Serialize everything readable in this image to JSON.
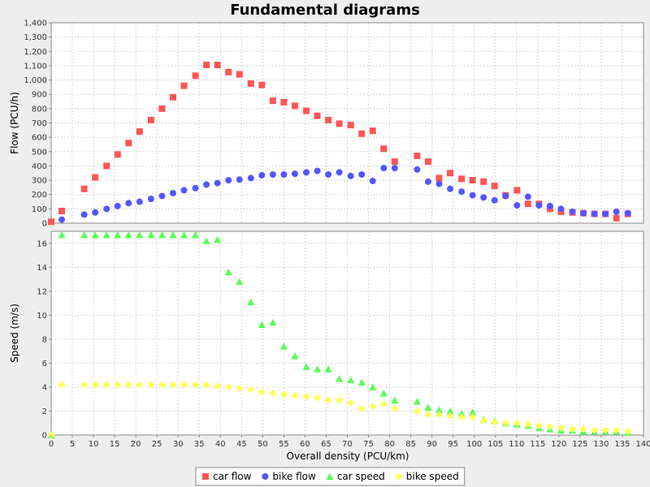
{
  "chart_data": {
    "type": "scatter",
    "title": "Fundamental diagrams",
    "xlabel": "Overall density (PCU/km)",
    "xlim": [
      0,
      140
    ],
    "x_ticks": [
      "0",
      "5",
      "10",
      "15",
      "20",
      "25",
      "30",
      "35",
      "40",
      "45",
      "50",
      "55",
      "60",
      "65",
      "70",
      "75",
      "80",
      "85",
      "90",
      "95",
      "100",
      "105",
      "110",
      "115",
      "120",
      "125",
      "130",
      "135",
      "140"
    ],
    "grid": true,
    "legend_position": "bottom",
    "panels": [
      {
        "ylabel": "Flow (PCU/h)",
        "ylim": [
          0,
          1400
        ],
        "y_ticks": [
          "0",
          "100",
          "200",
          "300",
          "400",
          "500",
          "600",
          "700",
          "800",
          "900",
          "1,000",
          "1,100",
          "1,200",
          "1,300",
          "1,400"
        ],
        "series": [
          {
            "name": "car flow",
            "marker": "square",
            "color": "#ff5555",
            "x": [
              0,
              2.5,
              7.8,
              10.4,
              13.1,
              15.7,
              18.3,
              20.9,
              23.6,
              26.2,
              28.8,
              31.4,
              34.1,
              36.7,
              39.3,
              41.9,
              44.5,
              47.2,
              49.8,
              52.4,
              55,
              57.6,
              60.3,
              62.9,
              65.5,
              68.1,
              70.8,
              73.4,
              76,
              78.6,
              81.2,
              86.5,
              89.1,
              91.7,
              94.3,
              97,
              99.6,
              102.2,
              104.8,
              107.4,
              110.1,
              112.7,
              115.3,
              117.9,
              120.5,
              123.2,
              125.8,
              128.4,
              131,
              133.6,
              136.3
            ],
            "y": [
              10,
              85,
              240,
              320,
              400,
              480,
              560,
              640,
              720,
              800,
              880,
              960,
              1030,
              1105,
              1105,
              1055,
              1040,
              975,
              965,
              855,
              845,
              820,
              785,
              750,
              720,
              695,
              685,
              625,
              645,
              520,
              430,
              470,
              430,
              315,
              350,
              310,
              300,
              290,
              260,
              195,
              230,
              135,
              135,
              100,
              80,
              75,
              70,
              65,
              65,
              35,
              65
            ]
          },
          {
            "name": "bike flow",
            "marker": "circle",
            "color": "#5555ff",
            "x": [
              2.5,
              7.8,
              10.4,
              13.1,
              15.7,
              18.3,
              20.9,
              23.6,
              26.2,
              28.8,
              31.4,
              34.1,
              36.7,
              39.3,
              41.9,
              44.5,
              47.2,
              49.8,
              52.4,
              55,
              57.6,
              60.3,
              62.9,
              65.5,
              68.1,
              70.8,
              73.4,
              76,
              78.6,
              81.2,
              86.5,
              89.1,
              91.7,
              94.3,
              97,
              99.6,
              102.2,
              104.8,
              107.4,
              110.1,
              112.7,
              115.3,
              117.9,
              120.5,
              123.2,
              125.8,
              128.4,
              131,
              133.6,
              136.3
            ],
            "y": [
              25,
              60,
              75,
              100,
              120,
              140,
              150,
              170,
              190,
              210,
              230,
              245,
              270,
              280,
              300,
              305,
              315,
              335,
              340,
              340,
              345,
              355,
              365,
              340,
              355,
              330,
              340,
              295,
              385,
              385,
              375,
              290,
              275,
              240,
              220,
              195,
              180,
              160,
              190,
              125,
              185,
              125,
              120,
              100,
              80,
              70,
              65,
              65,
              80,
              70
            ]
          }
        ]
      },
      {
        "ylabel": "Speed (m/s)",
        "ylim": [
          0,
          17
        ],
        "y_ticks": [
          "0",
          "2",
          "4",
          "6",
          "8",
          "10",
          "12",
          "14",
          "16"
        ],
        "series": [
          {
            "name": "car speed",
            "marker": "triangle",
            "color": "#55ff55",
            "x": [
              0,
              2.5,
              7.8,
              10.4,
              13.1,
              15.7,
              18.3,
              20.9,
              23.6,
              26.2,
              28.8,
              31.4,
              34.1,
              36.7,
              39.3,
              41.9,
              44.5,
              47.2,
              49.8,
              52.4,
              55,
              57.6,
              60.3,
              62.9,
              65.5,
              68.1,
              70.8,
              73.4,
              76,
              78.6,
              81.2,
              86.5,
              89.1,
              91.7,
              94.3,
              97,
              99.6,
              102.2,
              104.8,
              107.4,
              110.1,
              112.7,
              115.3,
              117.9,
              120.5,
              123.2,
              125.8,
              128.4,
              131,
              133.6,
              136.3
            ],
            "y": [
              0,
              16.7,
              16.7,
              16.7,
              16.7,
              16.7,
              16.7,
              16.7,
              16.7,
              16.7,
              16.7,
              16.7,
              16.7,
              16.2,
              16.3,
              13.6,
              12.8,
              11.1,
              9.2,
              9.4,
              7.4,
              6.6,
              5.7,
              5.5,
              5.5,
              4.7,
              4.6,
              4.4,
              4.0,
              3.5,
              2.9,
              2.8,
              2.3,
              2.1,
              2.0,
              1.8,
              1.9,
              1.3,
              1.2,
              1.0,
              0.9,
              0.8,
              0.6,
              0.5,
              0.4,
              0.4,
              0.3,
              0.3,
              0.3,
              0.3,
              0.2
            ]
          },
          {
            "name": "bike speed",
            "marker": "diamond",
            "color": "#ffff55",
            "x": [
              0,
              2.5,
              7.8,
              10.4,
              13.1,
              15.7,
              18.3,
              20.9,
              23.6,
              26.2,
              28.8,
              31.4,
              34.1,
              36.7,
              39.3,
              41.9,
              44.5,
              47.2,
              49.8,
              52.4,
              55,
              57.6,
              60.3,
              62.9,
              65.5,
              68.1,
              70.8,
              73.4,
              76,
              78.6,
              81.2,
              86.5,
              89.1,
              91.7,
              94.3,
              97,
              99.6,
              102.2,
              104.8,
              107.4,
              110.1,
              112.7,
              115.3,
              117.9,
              120.5,
              123.2,
              125.8,
              128.4,
              131,
              133.6,
              136.3
            ],
            "y": [
              0,
              4.2,
              4.2,
              4.2,
              4.2,
              4.2,
              4.2,
              4.2,
              4.2,
              4.2,
              4.2,
              4.2,
              4.2,
              4.2,
              4.1,
              4.0,
              3.9,
              3.8,
              3.6,
              3.5,
              3.4,
              3.3,
              3.2,
              3.1,
              2.9,
              2.9,
              2.7,
              2.2,
              2.4,
              2.6,
              2.2,
              2.0,
              1.7,
              1.7,
              1.6,
              1.5,
              1.5,
              1.2,
              1.1,
              1.0,
              1.0,
              0.9,
              0.8,
              0.7,
              0.6,
              0.5,
              0.5,
              0.4,
              0.4,
              0.4,
              0.3
            ]
          }
        ]
      }
    ]
  }
}
